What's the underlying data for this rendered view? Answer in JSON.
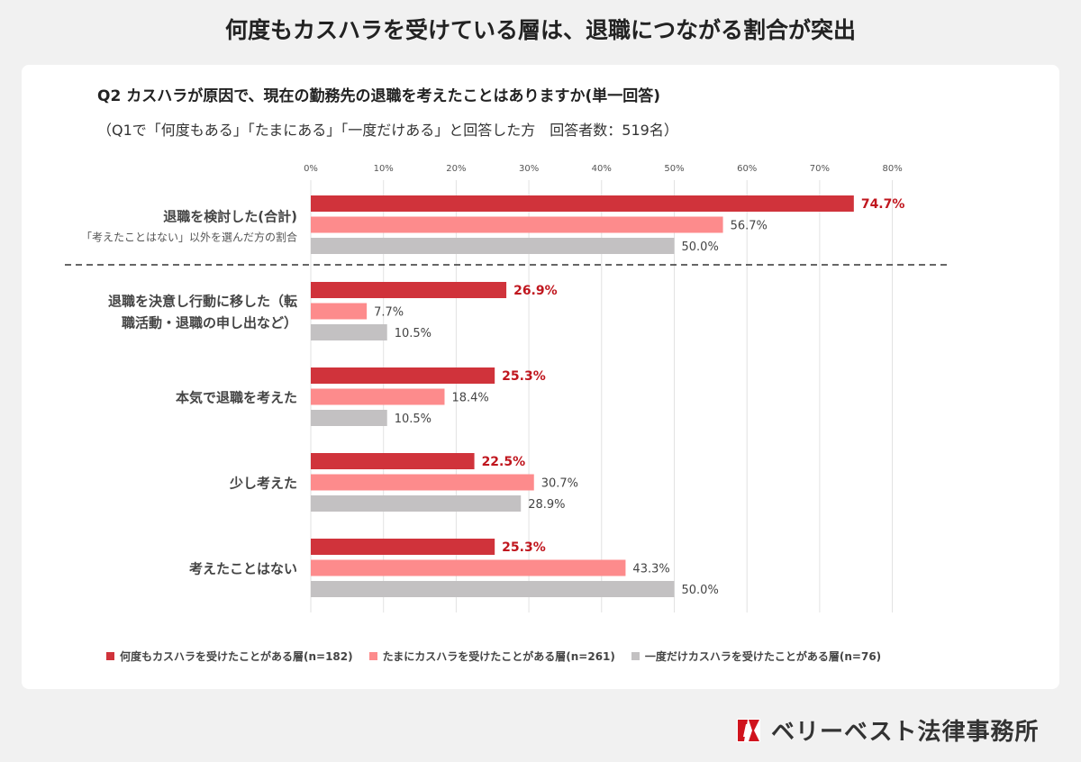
{
  "header": {
    "title": "何度もカスハラを受けている層は、退職につながる割合が突出",
    "question": "Q2 カスハラが原因で、現在の勤務先の退職を考えたことはありますか(単一回答)",
    "subtitle": "（Q1で「何度もある」「たまにある」「一度だけある」と回答した方　回答者数：519名）"
  },
  "colors": {
    "series1": "#d0333b",
    "series2": "#fd8b8c",
    "series3": "#c3c1c2",
    "label_red": "#c0161e",
    "grid": "#e2e2e2"
  },
  "chart_data": {
    "type": "bar",
    "orientation": "horizontal",
    "xlim": [
      0,
      80
    ],
    "xticks": [
      "0%",
      "10%",
      "20%",
      "30%",
      "40%",
      "50%",
      "60%",
      "70%",
      "80%"
    ],
    "categories": [
      {
        "label": [
          "退職を検討した(合計)"
        ],
        "note": "「考えたことはない」以外を選んだ方の割合"
      },
      {
        "label": [
          "退職を決意し行動に移した（転",
          "職活動・退職の申し出など）"
        ],
        "note": ""
      },
      {
        "label": [
          "本気で退職を考えた"
        ],
        "note": ""
      },
      {
        "label": [
          "少し考えた"
        ],
        "note": ""
      },
      {
        "label": [
          "考えたことはない"
        ],
        "note": ""
      }
    ],
    "series": [
      {
        "name": "何度もカスハラを受けたことがある層(n=182)",
        "values": [
          74.7,
          26.9,
          25.3,
          22.5,
          25.3
        ],
        "labels": [
          "74.7%",
          "26.9%",
          "25.3%",
          "22.5%",
          "25.3%"
        ]
      },
      {
        "name": "たまにカスハラを受けたことがある層(n=261)",
        "values": [
          56.7,
          7.7,
          18.4,
          30.7,
          43.3
        ],
        "labels": [
          "56.7%",
          "7.7%",
          "18.4%",
          "30.7%",
          "43.3%"
        ]
      },
      {
        "name": "一度だけカスハラを受けたことがある層(n=76)",
        "values": [
          50.0,
          10.5,
          10.5,
          28.9,
          50.0
        ],
        "labels": [
          "50.0%",
          "10.5%",
          "10.5%",
          "28.9%",
          "50.0%"
        ]
      }
    ],
    "grid": true,
    "legend_position": "bottom",
    "divider_after_category": 0
  },
  "logo": {
    "text": "ベリーベスト法律事務所"
  }
}
